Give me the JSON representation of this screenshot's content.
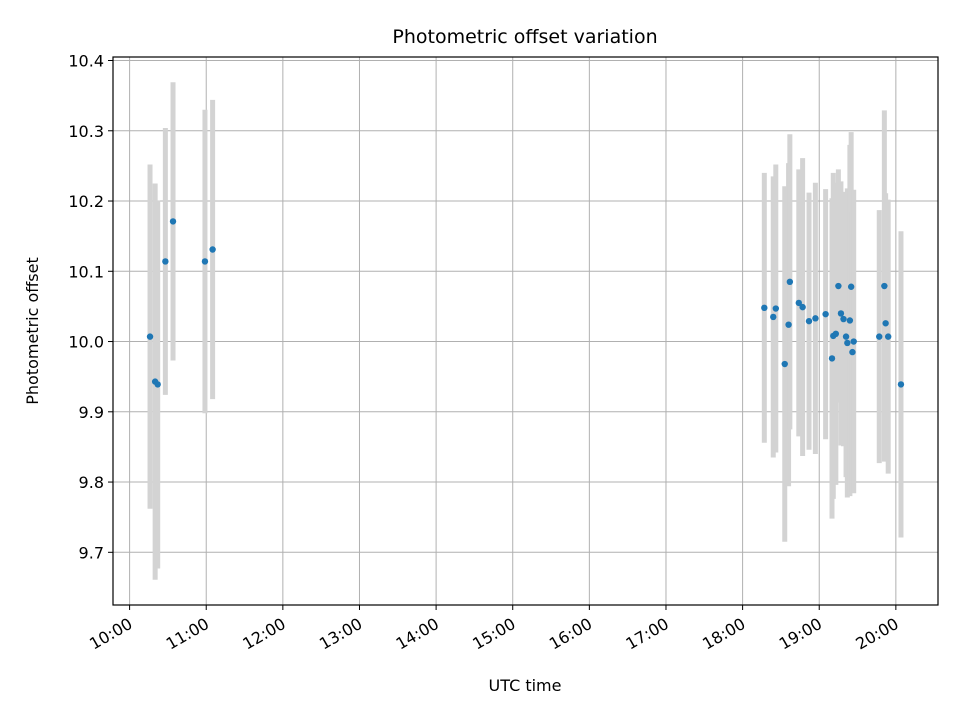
{
  "chart_data": {
    "type": "scatter",
    "title": "Photometric offset variation",
    "xlabel": "UTC time",
    "ylabel": "Photometric offset",
    "x_unit": "UTC hours",
    "xlim": [
      "09:47",
      "20:33"
    ],
    "ylim": [
      9.625,
      10.405
    ],
    "x_ticks": [
      "10:00",
      "11:00",
      "12:00",
      "13:00",
      "14:00",
      "15:00",
      "16:00",
      "17:00",
      "18:00",
      "19:00",
      "20:00"
    ],
    "y_ticks": [
      "9.7",
      "9.8",
      "9.9",
      "10.0",
      "10.1",
      "10.2",
      "10.3",
      "10.4"
    ],
    "grid": true,
    "legend": "none",
    "errorbar_color": "#d3d3d3",
    "point_color": "#1f77b4",
    "points": [
      {
        "time": "10:16",
        "y": 10.007,
        "err": 0.245
      },
      {
        "time": "10:20",
        "y": 9.943,
        "err": 0.282
      },
      {
        "time": "10:22",
        "y": 9.939,
        "err": 0.262
      },
      {
        "time": "10:28",
        "y": 10.114,
        "err": 0.19
      },
      {
        "time": "10:34",
        "y": 10.171,
        "err": 0.198
      },
      {
        "time": "10:59",
        "y": 10.114,
        "err": 0.216
      },
      {
        "time": "11:05",
        "y": 10.131,
        "err": 0.213
      },
      {
        "time": "18:17",
        "y": 10.048,
        "err": 0.192
      },
      {
        "time": "18:24",
        "y": 10.035,
        "err": 0.2
      },
      {
        "time": "18:26",
        "y": 10.047,
        "err": 0.205
      },
      {
        "time": "18:33",
        "y": 9.968,
        "err": 0.253
      },
      {
        "time": "18:36",
        "y": 10.024,
        "err": 0.23
      },
      {
        "time": "18:37",
        "y": 10.085,
        "err": 0.21
      },
      {
        "time": "18:44",
        "y": 10.055,
        "err": 0.19
      },
      {
        "time": "18:47",
        "y": 10.049,
        "err": 0.212
      },
      {
        "time": "18:52",
        "y": 10.029,
        "err": 0.183
      },
      {
        "time": "18:57",
        "y": 10.033,
        "err": 0.193
      },
      {
        "time": "19:05",
        "y": 10.039,
        "err": 0.178
      },
      {
        "time": "19:10",
        "y": 9.976,
        "err": 0.228
      },
      {
        "time": "19:11",
        "y": 10.008,
        "err": 0.232
      },
      {
        "time": "19:13",
        "y": 10.011,
        "err": 0.215
      },
      {
        "time": "19:15",
        "y": 10.079,
        "err": 0.166
      },
      {
        "time": "19:17",
        "y": 10.04,
        "err": 0.188
      },
      {
        "time": "19:19",
        "y": 10.032,
        "err": 0.181
      },
      {
        "time": "19:21",
        "y": 10.007,
        "err": 0.2
      },
      {
        "time": "19:22",
        "y": 9.998,
        "err": 0.22
      },
      {
        "time": "19:24",
        "y": 10.03,
        "err": 0.25
      },
      {
        "time": "19:25",
        "y": 10.078,
        "err": 0.22
      },
      {
        "time": "19:26",
        "y": 9.985,
        "err": 0.2
      },
      {
        "time": "19:27",
        "y": 10.0,
        "err": 0.216
      },
      {
        "time": "19:47",
        "y": 10.007,
        "err": 0.18
      },
      {
        "time": "19:51",
        "y": 10.079,
        "err": 0.25
      },
      {
        "time": "19:52",
        "y": 10.026,
        "err": 0.185
      },
      {
        "time": "19:54",
        "y": 10.007,
        "err": 0.195
      },
      {
        "time": "20:04",
        "y": 9.939,
        "err": 0.218
      }
    ]
  }
}
